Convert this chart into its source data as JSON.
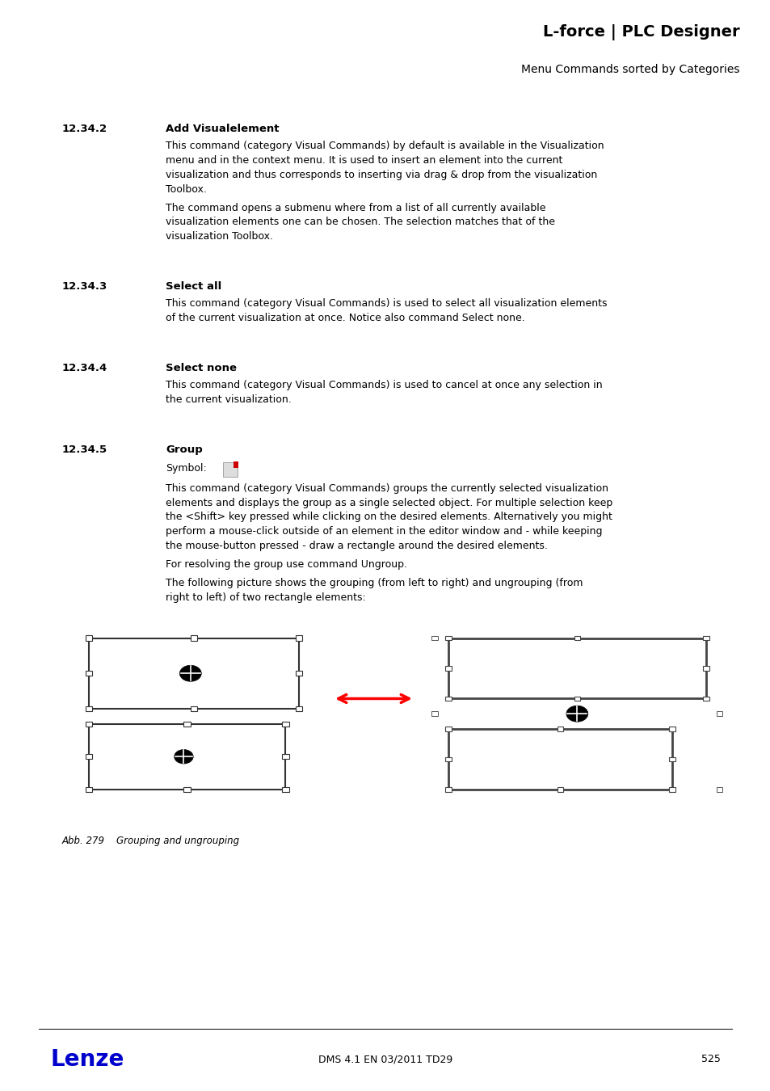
{
  "header_bg": "#d4d4d4",
  "header_title": "L-force | PLC Designer",
  "header_subtitle": "Menu Commands sorted by Categories",
  "footer_text": "DMS 4.1 EN 03/2011 TD29",
  "footer_page": "525",
  "lenze_color": "#0000cc",
  "body_bg": "#ffffff",
  "sec1_num": "12.34.2",
  "sec1_title": "Add Visualelement",
  "sec1_p1": "This command (category Visual Commands) by default is available in the Visualization\nmenu and in the context menu. It is used to insert an element into the current\nvisualization and thus corresponds to inserting via drag & drop from the visualization\nToolbox.",
  "sec1_p2": "The command opens a submenu where from a list of all currently available\nvisualization elements one can be chosen. The selection matches that of the\nvisualization Toolbox.",
  "sec2_num": "12.34.3",
  "sec2_title": "Select all",
  "sec2_p1": "This command (category Visual Commands) is used to select all visualization elements\nof the current visualization at once. Notice also command Select none.",
  "sec3_num": "12.34.4",
  "sec3_title": "Select none",
  "sec3_p1": "This command (category Visual Commands) is used to cancel at once any selection in\nthe current visualization.",
  "sec4_num": "12.34.5",
  "sec4_title": "Group",
  "sec4_symbol": "Symbol:",
  "sec4_p1": "This command (category Visual Commands) groups the currently selected visualization\nelements and displays the group as a single selected object. For multiple selection keep\nthe <Shift> key pressed while clicking on the desired elements. Alternatively you might\nperform a mouse-click outside of an element in the editor window and - while keeping\nthe mouse-button pressed - draw a rectangle around the desired elements.",
  "sec4_p2": "For resolving the group use command Ungroup.",
  "sec4_p3": "The following picture shows the grouping (from left to right) and ungrouping (from\nright to left) of two rectangle elements:",
  "fig_caption": "Abb. 279    Grouping and ungrouping"
}
